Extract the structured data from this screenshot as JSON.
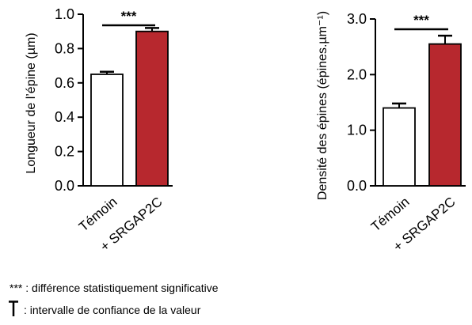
{
  "chart_data": [
    {
      "type": "bar",
      "categories": [
        "Témoin",
        "+ SRGAP2C"
      ],
      "values": [
        0.65,
        0.9
      ],
      "errors": [
        0.015,
        0.02
      ],
      "colors": [
        "#ffffff",
        "#b7282e"
      ],
      "ylabel": "Longueur de l’épine (µm)",
      "ylim": [
        0,
        1.0
      ],
      "yticks": [
        "0.0",
        "0.2",
        "0.4",
        "0.6",
        "0.8",
        "1.0"
      ],
      "significance": "***"
    },
    {
      "type": "bar",
      "categories": [
        "Témoin",
        "+ SRGAP2C"
      ],
      "values": [
        1.4,
        2.55
      ],
      "errors": [
        0.08,
        0.15
      ],
      "colors": [
        "#ffffff",
        "#b7282e"
      ],
      "ylabel": "Densité des épines (épines.µm⁻¹)",
      "ylim": [
        0,
        3.0
      ],
      "yticks": [
        "0.0",
        "1.0",
        "2.0",
        "3.0"
      ],
      "significance": "***"
    }
  ],
  "legend": {
    "stars_symbol": "***",
    "stars_text": " : différence statistiquement significative",
    "ci_icon": "error-bar-icon",
    "ci_text": ": intervalle de confiance de la valeur"
  }
}
